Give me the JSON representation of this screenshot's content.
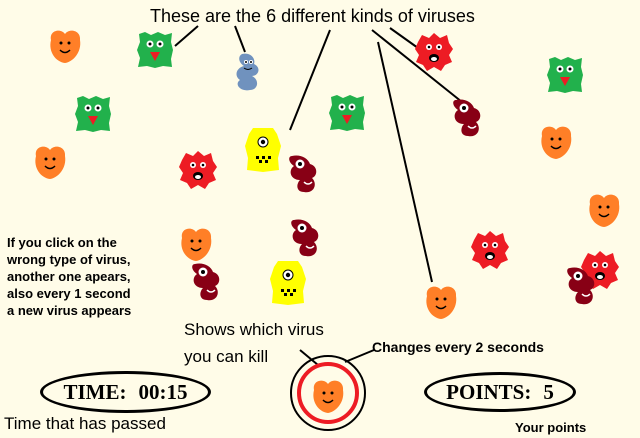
{
  "title": "These are the 6 different kinds of viruses",
  "help_lines": [
    "If you click on the",
    "wrong type of virus,",
    "another one apears,",
    "also every 1 second",
    "a new virus appears"
  ],
  "shows_line1": "Shows which virus",
  "shows_line2": "you can kill",
  "changes_label": "Changes every 2 seconds",
  "time": {
    "label": "TIME:",
    "value": "00:15"
  },
  "time_caption": "Time that has passed",
  "points": {
    "label": "POINTS:",
    "value": "5"
  },
  "points_caption": "Your points",
  "target_virus": "orange",
  "colors": {
    "orange": "#ff7f27",
    "green": "#22b14c",
    "red": "#ed1c24",
    "darkred": "#880015",
    "yellow": "#ffff00",
    "blue": "#7092be",
    "ring": "#ed1c24"
  }
}
